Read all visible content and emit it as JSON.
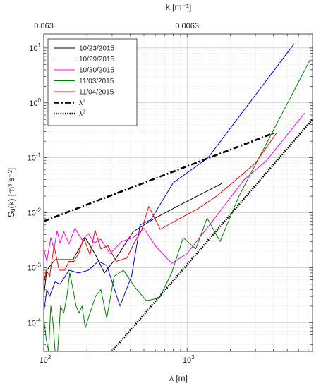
{
  "chart_data": {
    "type": "line",
    "xlabel": "λ [m]",
    "xlabel_top": "k [m⁻¹]",
    "ylabel": "Sᵤ(k) [m³ s⁻²]",
    "x_scale": "log",
    "y_scale": "log",
    "xlim": [
      100,
      7500
    ],
    "ylim": [
      3e-05,
      18
    ],
    "grid": true,
    "grid_minor": true,
    "legend_position": "top-left",
    "x_ticks": [
      {
        "value": 100,
        "label": "10",
        "exp": "2"
      },
      {
        "value": 1000,
        "label": "10",
        "exp": "3"
      }
    ],
    "y_ticks": [
      {
        "value": 0.0001,
        "label": "10",
        "exp": "-4"
      },
      {
        "value": 0.001,
        "label": "10",
        "exp": "-3"
      },
      {
        "value": 0.01,
        "label": "10",
        "exp": "-2"
      },
      {
        "value": 0.1,
        "label": "10",
        "exp": "-1"
      },
      {
        "value": 1,
        "label": "10",
        "exp": "0"
      },
      {
        "value": 10,
        "label": "10",
        "exp": "1"
      }
    ],
    "top_ticks": [
      {
        "value": 100,
        "label": "0.063"
      },
      {
        "value": 1000,
        "label": "0.0063"
      }
    ],
    "series": [
      {
        "name": "10/23/2015",
        "color": "#000000",
        "style": "solid",
        "x": [
          100,
          105,
          120,
          160,
          195,
          230,
          265,
          320,
          420,
          600,
          900,
          1750
        ],
        "y": [
          0.0003,
          0.0009,
          0.0014,
          0.0014,
          0.0035,
          0.0017,
          0.0008,
          0.0015,
          0.0045,
          0.008,
          0.014,
          0.034
        ]
      },
      {
        "name": "10/29/2015",
        "color": "#0000ff",
        "style": "solid",
        "x": [
          100,
          105,
          110,
          120,
          130,
          150,
          175,
          205,
          240,
          275,
          340,
          410,
          470,
          560,
          800,
          1400,
          5600
        ],
        "y": [
          0.00015,
          0.0004,
          0.0003,
          0.00055,
          0.0005,
          0.0009,
          0.0008,
          0.0009,
          0.0013,
          0.0011,
          0.0002,
          0.0007,
          0.006,
          0.0075,
          0.035,
          0.1,
          12
        ]
      },
      {
        "name": "10/30/2015",
        "color": "#ff00ff",
        "style": "solid",
        "x": [
          100,
          105,
          112,
          118,
          124,
          130,
          138,
          150,
          165,
          185,
          205,
          225,
          250,
          290,
          350,
          420,
          500,
          600,
          780,
          1000,
          1500,
          2500,
          3600,
          6600
        ],
        "y": [
          0.0022,
          0.0013,
          0.0035,
          0.0022,
          0.0047,
          0.0028,
          0.0045,
          0.0027,
          0.0052,
          0.0032,
          0.0042,
          0.0028,
          0.0033,
          0.0018,
          0.003,
          0.0035,
          0.0052,
          0.0025,
          0.0012,
          0.0018,
          0.007,
          0.04,
          0.09,
          0.65
        ]
      },
      {
        "name": "11/03/2015",
        "color": "#008000",
        "style": "solid",
        "x": [
          100,
          104,
          108,
          112,
          116,
          120,
          125,
          131,
          138,
          145,
          152,
          160,
          168,
          176,
          185,
          195,
          210,
          230,
          250,
          275,
          310,
          360,
          430,
          520,
          640,
          780,
          940,
          1150,
          1380,
          1700,
          2300,
          7200
        ],
        "y": [
          0.00012,
          5e-05,
          3e-05,
          0.0002,
          0.0001,
          3e-05,
          3e-05,
          0.0002,
          0.00015,
          0.0003,
          0.0008,
          0.0004,
          0.0002,
          0.00015,
          0.0002,
          8e-05,
          0.00015,
          0.0003,
          0.0004,
          0.00012,
          0.0007,
          0.0009,
          0.00045,
          0.00025,
          0.00028,
          0.0008,
          0.0035,
          0.0022,
          0.008,
          0.003,
          0.02,
          6
        ]
      },
      {
        "name": "11/04/2015",
        "color": "#ff0000",
        "style": "solid",
        "x": [
          100,
          104,
          110,
          118,
          128,
          140,
          150,
          162,
          175,
          190,
          210,
          228,
          250,
          280,
          320,
          380,
          430,
          480,
          540,
          650,
          900,
          1200,
          1600,
          2200,
          3000,
          4200
        ],
        "y": [
          0.0005,
          0.0009,
          0.0007,
          0.0025,
          0.0009,
          0.0009,
          0.0013,
          0.0013,
          0.0018,
          0.0035,
          0.0017,
          0.0048,
          0.0022,
          0.0025,
          0.0013,
          0.0015,
          0.0029,
          0.0047,
          0.013,
          0.005,
          0.008,
          0.012,
          0.02,
          0.04,
          0.08,
          0.28
        ]
      },
      {
        "name": "λ",
        "name_exp": "1",
        "color": "#000000",
        "style": "dashdot",
        "x": [
          100,
          4000
        ],
        "y": [
          0.007,
          0.28
        ]
      },
      {
        "name": "λ",
        "name_exp": "3",
        "color": "#000000",
        "style": "dotted",
        "x": [
          300,
          7500
        ],
        "y": [
          3e-05,
          0.5
        ]
      }
    ]
  }
}
